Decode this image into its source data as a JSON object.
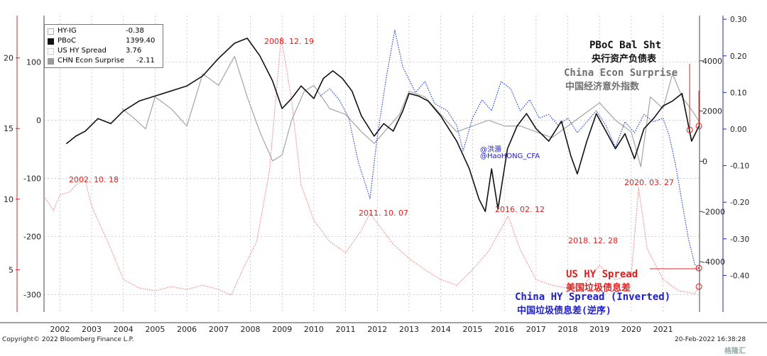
{
  "legend": {
    "items": [
      {
        "name": "HY-IG",
        "value": "-0.38",
        "swatch": "dotted-blue",
        "color": "#3050e0"
      },
      {
        "name": "PBoC",
        "value": "1399.40",
        "swatch": "solid-black",
        "color": "#111111"
      },
      {
        "name": "US HY Spread",
        "value": "3.76",
        "swatch": "dotted-pink",
        "color": "#f08080"
      },
      {
        "name": "CHN Econ Surprise",
        "value": "-2.11",
        "swatch": "solid-gray",
        "color": "#999999"
      }
    ]
  },
  "annotations": {
    "date_2008": "2008. 12. 19",
    "date_2002": "2002. 10. 18",
    "date_2011": "2011. 10. 07",
    "date_2016": "2016. 02. 12",
    "date_2018": "2018. 12. 28",
    "date_2020": "2020. 03. 27",
    "watermark": "@洪灝\n@HaoHONG_CFA",
    "watermark_line1": "@洪灝",
    "watermark_line2": "@HaoHONG_CFA",
    "pboc_en": "PBoC Bal Sht",
    "pboc_cn": "央行资产负债表",
    "econ_en": "China Econ Surprise",
    "econ_cn": "中国经济意外指数",
    "ushy_en": "US HY Spread",
    "ushy_cn": "美国垃圾债息差",
    "chnhy_en": "China HY Spread (Inverted)",
    "chnhy_cn": "中国垃圾债息差(逆序)"
  },
  "footer": {
    "copyright": "Copyright© 2022 Bloomberg Finance L.P.",
    "date": "20-Feb-2022 16:38:28",
    "logo_text": "格隆汇"
  },
  "chart_data": {
    "type": "line",
    "x_axis": {
      "labels": [
        "2002",
        "2003",
        "2004",
        "2005",
        "2006",
        "2007",
        "2008",
        "2009",
        "2010",
        "2011",
        "2012",
        "2013",
        "2014",
        "2015",
        "2016",
        "2017",
        "2018",
        "2019",
        "2020",
        "2021"
      ],
      "range": [
        2001.5,
        2022.15
      ]
    },
    "axes": {
      "left_outer": {
        "ticks": [
          20,
          15,
          10,
          5
        ],
        "range": [
          2,
          23
        ],
        "color": "#e02020",
        "series": "US HY Spread"
      },
      "left_inner": {
        "ticks": [
          100,
          0,
          -100,
          -200,
          -300
        ],
        "range": [
          -330,
          180
        ],
        "series": "CHN Econ Surprise"
      },
      "right_inner": {
        "ticks": [
          4000,
          2000,
          0,
          -2000,
          -4000
        ],
        "ticks_labels": [
          "4000",
          "2000",
          "0",
          "-2000",
          "-4000"
        ],
        "range": [
          -6000,
          5800
        ],
        "series": "PBoC"
      },
      "right_outer": {
        "ticks": [
          0.3,
          0.2,
          0.1,
          0.0,
          -0.1,
          -0.2,
          -0.3,
          -0.4
        ],
        "ticks_labels": [
          "0.30",
          "0.20",
          "0.10",
          "0.00",
          "-0.10",
          "-0.20",
          "-0.30",
          "-0.40"
        ],
        "range": [
          -0.5,
          0.31
        ],
        "color": "#2020c8",
        "series": "HY-IG"
      }
    },
    "grid": true,
    "legend_position": "top-left",
    "series": [
      {
        "name": "US HY Spread",
        "axis": "left_outer",
        "style": "dotted",
        "color": "#f08080",
        "points": [
          [
            2001.5,
            10.2
          ],
          [
            2001.8,
            9.2
          ],
          [
            2002.0,
            10.3
          ],
          [
            2002.3,
            10.5
          ],
          [
            2002.5,
            11.0
          ],
          [
            2002.79,
            11.4
          ],
          [
            2003.0,
            9.5
          ],
          [
            2003.3,
            8.0
          ],
          [
            2003.6,
            6.5
          ],
          [
            2004.0,
            4.3
          ],
          [
            2004.5,
            3.7
          ],
          [
            2005.0,
            3.5
          ],
          [
            2005.5,
            3.8
          ],
          [
            2006.0,
            3.6
          ],
          [
            2006.5,
            3.9
          ],
          [
            2007.0,
            3.6
          ],
          [
            2007.4,
            3.2
          ],
          [
            2007.8,
            5.2
          ],
          [
            2008.2,
            7.0
          ],
          [
            2008.6,
            12.0
          ],
          [
            2008.97,
            21.5
          ],
          [
            2009.3,
            17.0
          ],
          [
            2009.6,
            11.0
          ],
          [
            2010.0,
            8.5
          ],
          [
            2010.5,
            7.0
          ],
          [
            2011.0,
            6.2
          ],
          [
            2011.5,
            7.8
          ],
          [
            2011.77,
            9.0
          ],
          [
            2012.0,
            8.3
          ],
          [
            2012.5,
            6.8
          ],
          [
            2013.0,
            5.8
          ],
          [
            2013.5,
            5.0
          ],
          [
            2014.0,
            4.3
          ],
          [
            2014.5,
            3.9
          ],
          [
            2015.0,
            5.0
          ],
          [
            2015.5,
            6.3
          ],
          [
            2016.12,
            8.8
          ],
          [
            2016.5,
            6.4
          ],
          [
            2017.0,
            4.3
          ],
          [
            2017.5,
            3.9
          ],
          [
            2018.0,
            3.7
          ],
          [
            2018.5,
            3.9
          ],
          [
            2018.99,
            5.3
          ],
          [
            2019.5,
            4.3
          ],
          [
            2020.0,
            4.6
          ],
          [
            2020.23,
            10.8
          ],
          [
            2020.5,
            6.5
          ],
          [
            2021.0,
            4.3
          ],
          [
            2021.5,
            3.5
          ],
          [
            2022.0,
            3.3
          ],
          [
            2022.13,
            3.8
          ]
        ]
      },
      {
        "name": "CHN Econ Surprise",
        "axis": "left_inner",
        "style": "solid",
        "color": "#aaaaaa",
        "points": [
          [
            2003.95,
            20
          ],
          [
            2004.3,
            5
          ],
          [
            2004.7,
            -15
          ],
          [
            2005.0,
            40
          ],
          [
            2005.5,
            20
          ],
          [
            2006.0,
            -10
          ],
          [
            2006.5,
            80
          ],
          [
            2007.0,
            60
          ],
          [
            2007.5,
            110
          ],
          [
            2007.9,
            40
          ],
          [
            2008.3,
            -20
          ],
          [
            2008.7,
            -70
          ],
          [
            2009.0,
            -60
          ],
          [
            2009.3,
            0
          ],
          [
            2009.7,
            50
          ],
          [
            2010.0,
            60
          ],
          [
            2010.5,
            20
          ],
          [
            2011.0,
            10
          ],
          [
            2011.5,
            -20
          ],
          [
            2011.9,
            -40
          ],
          [
            2012.3,
            -15
          ],
          [
            2012.7,
            10
          ],
          [
            2013.0,
            50
          ],
          [
            2013.5,
            40
          ],
          [
            2014.0,
            10
          ],
          [
            2014.5,
            -20
          ],
          [
            2015.0,
            -10
          ],
          [
            2015.5,
            0
          ],
          [
            2016.0,
            -10
          ],
          [
            2016.5,
            -10
          ],
          [
            2017.0,
            -20
          ],
          [
            2017.5,
            -30
          ],
          [
            2018.0,
            -10
          ],
          [
            2018.5,
            10
          ],
          [
            2019.0,
            30
          ],
          [
            2019.5,
            0
          ],
          [
            2020.0,
            -20
          ],
          [
            2020.3,
            -80
          ],
          [
            2020.6,
            40
          ],
          [
            2021.0,
            20
          ],
          [
            2021.3,
            80
          ],
          [
            2021.6,
            40
          ],
          [
            2022.0,
            10
          ],
          [
            2022.13,
            -2
          ]
        ]
      },
      {
        "name": "PBoC",
        "axis": "right_inner",
        "style": "solid",
        "color": "#111111",
        "points": [
          [
            2002.2,
            700
          ],
          [
            2002.5,
            1000
          ],
          [
            2002.8,
            1200
          ],
          [
            2003.2,
            1700
          ],
          [
            2003.6,
            1500
          ],
          [
            2004.0,
            2000
          ],
          [
            2004.5,
            2400
          ],
          [
            2005.0,
            2600
          ],
          [
            2005.5,
            2800
          ],
          [
            2006.0,
            3000
          ],
          [
            2006.5,
            3400
          ],
          [
            2007.0,
            4100
          ],
          [
            2007.5,
            4700
          ],
          [
            2007.9,
            4900
          ],
          [
            2008.3,
            4200
          ],
          [
            2008.7,
            3200
          ],
          [
            2009.0,
            2100
          ],
          [
            2009.3,
            2500
          ],
          [
            2009.6,
            3000
          ],
          [
            2010.0,
            2500
          ],
          [
            2010.3,
            3300
          ],
          [
            2010.6,
            3600
          ],
          [
            2010.9,
            3300
          ],
          [
            2011.2,
            2800
          ],
          [
            2011.5,
            1800
          ],
          [
            2011.9,
            1000
          ],
          [
            2012.2,
            1500
          ],
          [
            2012.5,
            1200
          ],
          [
            2012.8,
            2000
          ],
          [
            2013.0,
            2700
          ],
          [
            2013.3,
            2600
          ],
          [
            2013.6,
            2400
          ],
          [
            2014.0,
            1800
          ],
          [
            2014.5,
            800
          ],
          [
            2014.9,
            -300
          ],
          [
            2015.2,
            -1500
          ],
          [
            2015.4,
            -2000
          ],
          [
            2015.6,
            -300
          ],
          [
            2015.8,
            -1900
          ],
          [
            2016.1,
            500
          ],
          [
            2016.4,
            1400
          ],
          [
            2016.7,
            1900
          ],
          [
            2017.0,
            1300
          ],
          [
            2017.4,
            800
          ],
          [
            2017.8,
            1600
          ],
          [
            2018.1,
            200
          ],
          [
            2018.3,
            -500
          ],
          [
            2018.6,
            800
          ],
          [
            2018.9,
            1900
          ],
          [
            2019.2,
            1200
          ],
          [
            2019.5,
            500
          ],
          [
            2019.8,
            1100
          ],
          [
            2020.1,
            100
          ],
          [
            2020.4,
            1300
          ],
          [
            2020.7,
            1700
          ],
          [
            2021.0,
            2200
          ],
          [
            2021.3,
            2400
          ],
          [
            2021.6,
            2700
          ],
          [
            2021.9,
            800
          ],
          [
            2022.13,
            1400
          ]
        ]
      },
      {
        "name": "HY-IG",
        "axis": "right_outer",
        "style": "dotted",
        "color": "#2040e0",
        "points": [
          [
            2010.2,
            0.09
          ],
          [
            2010.5,
            0.11
          ],
          [
            2010.8,
            0.08
          ],
          [
            2011.1,
            0.03
          ],
          [
            2011.4,
            -0.09
          ],
          [
            2011.77,
            -0.19
          ],
          [
            2012.0,
            -0.02
          ],
          [
            2012.3,
            0.15
          ],
          [
            2012.55,
            0.27
          ],
          [
            2012.8,
            0.17
          ],
          [
            2013.2,
            0.1
          ],
          [
            2013.5,
            0.13
          ],
          [
            2013.8,
            0.07
          ],
          [
            2014.2,
            0.05
          ],
          [
            2014.5,
            0.01
          ],
          [
            2014.7,
            -0.06
          ],
          [
            2015.0,
            0.03
          ],
          [
            2015.3,
            0.08
          ],
          [
            2015.6,
            0.05
          ],
          [
            2015.9,
            0.13
          ],
          [
            2016.2,
            0.11
          ],
          [
            2016.5,
            0.05
          ],
          [
            2016.8,
            0.08
          ],
          [
            2017.1,
            0.03
          ],
          [
            2017.4,
            0.04
          ],
          [
            2017.7,
            0.01
          ],
          [
            2018.0,
            0.03
          ],
          [
            2018.3,
            -0.01
          ],
          [
            2018.6,
            0.02
          ],
          [
            2018.9,
            0.05
          ],
          [
            2019.2,
            0.01
          ],
          [
            2019.5,
            -0.05
          ],
          [
            2019.8,
            0.02
          ],
          [
            2020.1,
            -0.01
          ],
          [
            2020.4,
            0.04
          ],
          [
            2020.7,
            0.02
          ],
          [
            2021.0,
            0.03
          ],
          [
            2021.2,
            -0.02
          ],
          [
            2021.4,
            -0.1
          ],
          [
            2021.6,
            -0.2
          ],
          [
            2021.8,
            -0.3
          ],
          [
            2022.0,
            -0.37
          ],
          [
            2022.13,
            -0.38
          ]
        ]
      }
    ]
  }
}
